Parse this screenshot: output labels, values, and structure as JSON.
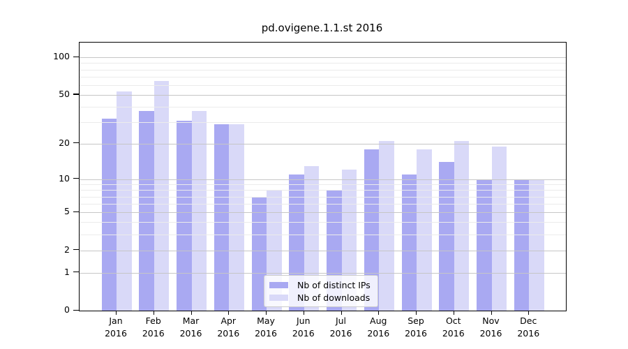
{
  "title": "pd.ovigene.1.1.st 2016",
  "chart_data": {
    "type": "bar",
    "title": "pd.ovigene.1.1.st 2016",
    "categories": [
      "Jan",
      "Feb",
      "Mar",
      "Apr",
      "May",
      "Jun",
      "Jul",
      "Aug",
      "Sep",
      "Oct",
      "Nov",
      "Dec"
    ],
    "year_label": "2016",
    "series": [
      {
        "name": "Nb of distinct IPs",
        "color": "#a9a9f2",
        "values": [
          32,
          37,
          31,
          29,
          7,
          11,
          8,
          18,
          11,
          14,
          10,
          10
        ]
      },
      {
        "name": "Nb of downloads",
        "color": "#d9d9f8",
        "values": [
          53,
          65,
          37,
          29,
          8,
          13,
          12,
          21,
          18,
          21,
          19,
          10
        ]
      }
    ],
    "yscale": "log10(1+x)",
    "ylim": [
      0,
      132
    ],
    "yticks": [
      0,
      1,
      2,
      5,
      10,
      20,
      50,
      100
    ],
    "minor_yticks": [
      3,
      4,
      6,
      7,
      8,
      9,
      30,
      40,
      60,
      70,
      80,
      90
    ],
    "xlabel": "",
    "ylabel": "",
    "grid": "horizontal",
    "legend_position": "lower-center-inside"
  },
  "colors": {
    "major_grid": "#c6c6c6",
    "minor_grid": "#ebebeb",
    "axis": "#000000",
    "background": "#ffffff"
  }
}
